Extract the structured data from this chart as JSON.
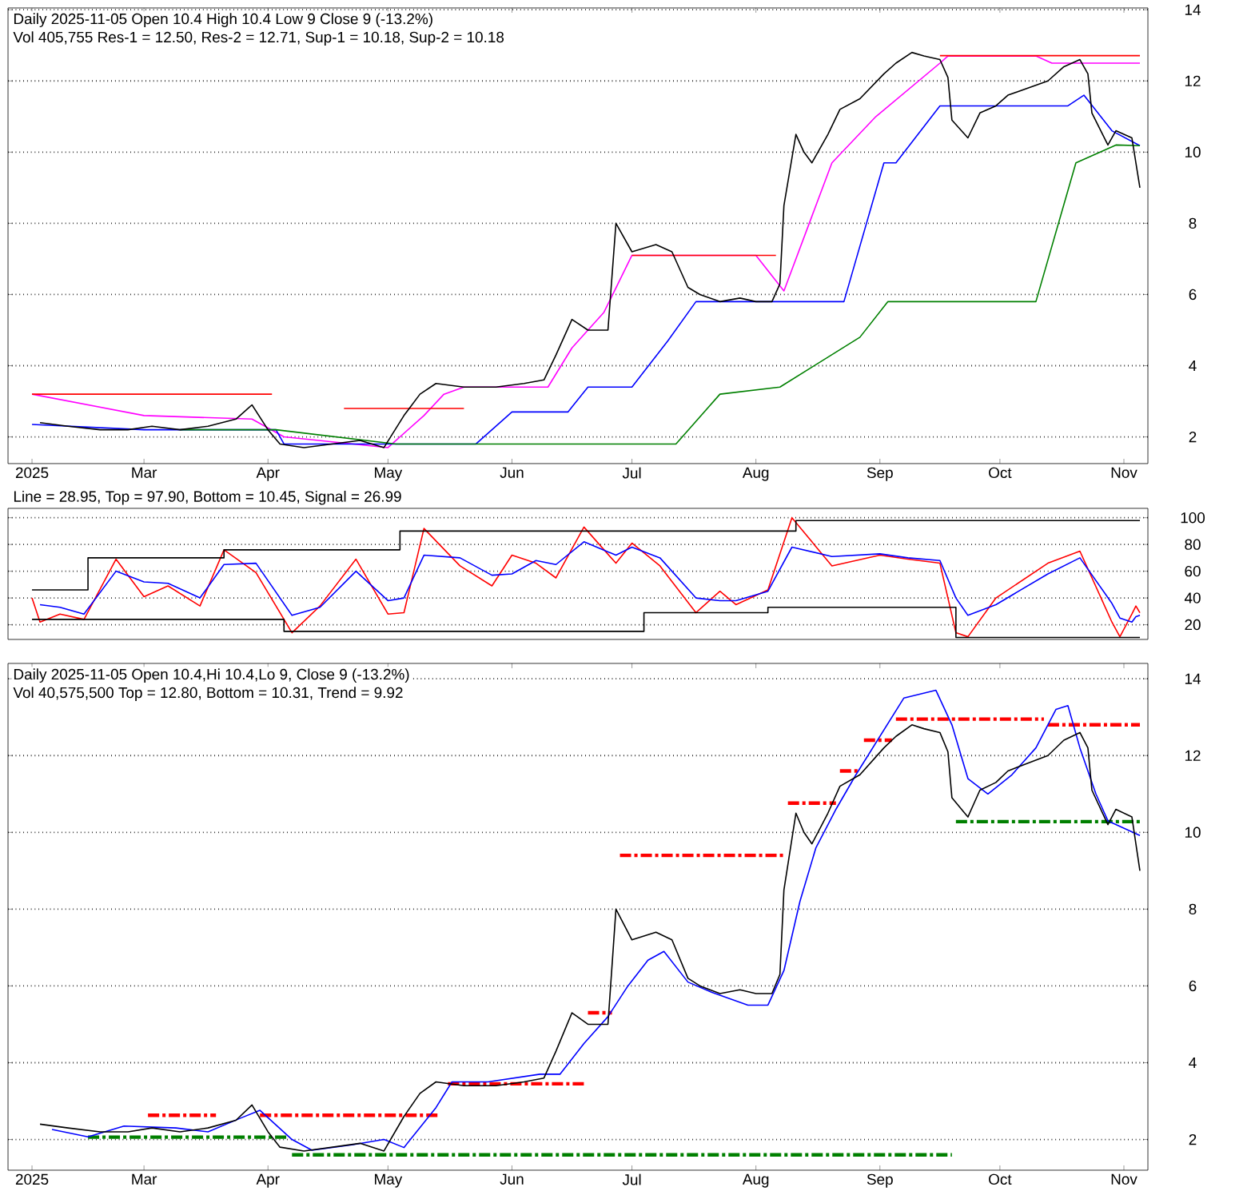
{
  "chart_data": [
    {
      "type": "line",
      "title": "Daily 2025-11-05 Open 10.4  High 10.4  Low 9  Close 9 (-13.2%)",
      "subtitle": "Vol 405,755 Res-1 = 12.50, Res-2 = 12.71, Sup-1 = 10.18, Sup-2 = 10.18",
      "xlim": [
        "2025-01-26",
        "2025-11-07"
      ],
      "ylim": [
        1.25,
        14.05
      ],
      "yticks": [
        2,
        4,
        6,
        8,
        10,
        12,
        14
      ],
      "xticks": [
        {
          "value": "2025-02-01",
          "label": "2025"
        },
        {
          "value": "2025-03-01",
          "label": "Mar"
        },
        {
          "value": "2025-04-01",
          "label": "Apr"
        },
        {
          "value": "2025-05-01",
          "label": "May"
        },
        {
          "value": "2025-06-01",
          "label": "Jun"
        },
        {
          "value": "2025-07-01",
          "label": "Jul"
        },
        {
          "value": "2025-08-01",
          "label": "Aug"
        },
        {
          "value": "2025-09-01",
          "label": "Sep"
        },
        {
          "value": "2025-10-01",
          "label": "Oct"
        },
        {
          "value": "2025-11-01",
          "label": "Nov"
        }
      ],
      "grid": "y",
      "line_style": "solid",
      "series": [
        {
          "color": "#ff00ff",
          "x": [
            "2025-02-01",
            "2025-03-01",
            "2025-03-28",
            "2025-04-05",
            "2025-05-01",
            "2025-05-10",
            "2025-05-15",
            "2025-05-20",
            "2025-06-10",
            "2025-06-16",
            "2025-06-24",
            "2025-07-01",
            "2025-08-01",
            "2025-08-08",
            "2025-08-20",
            "2025-08-31",
            "2025-09-16",
            "2025-09-18",
            "2025-10-10",
            "2025-10-14",
            "2025-11-05"
          ],
          "values": [
            3.2,
            2.6,
            2.5,
            2.0,
            1.7,
            2.6,
            3.2,
            3.4,
            3.4,
            4.5,
            5.5,
            7.1,
            7.1,
            6.1,
            9.7,
            11.0,
            12.5,
            12.7,
            12.7,
            12.5,
            12.5
          ]
        },
        {
          "color": "#ff0000",
          "x": [
            "2025-02-01",
            "2025-04-02",
            "2025-04-03",
            "2025-04-20",
            "2025-05-20",
            "2025-05-21",
            "2025-07-01",
            "2025-08-06",
            "2025-08-07",
            "2025-09-16",
            "2025-11-05"
          ],
          "values": [
            3.2,
            3.2,
            null,
            2.8,
            2.8,
            null,
            7.1,
            7.1,
            null,
            12.71,
            12.71
          ]
        },
        {
          "color": "#0000ff",
          "x": [
            "2025-02-01",
            "2025-03-01",
            "2025-04-03",
            "2025-04-05",
            "2025-05-23",
            "2025-06-01",
            "2025-06-15",
            "2025-06-20",
            "2025-07-01",
            "2025-07-10",
            "2025-07-17",
            "2025-08-23",
            "2025-09-02",
            "2025-09-05",
            "2025-09-16",
            "2025-10-18",
            "2025-10-22",
            "2025-10-29",
            "2025-11-05"
          ],
          "values": [
            2.35,
            2.2,
            2.2,
            1.8,
            1.8,
            2.7,
            2.7,
            3.4,
            3.4,
            4.7,
            5.8,
            5.8,
            9.7,
            9.7,
            11.3,
            11.3,
            11.6,
            10.6,
            10.18
          ]
        },
        {
          "color": "#008000",
          "x": [
            "2025-03-10",
            "2025-04-03",
            "2025-05-03",
            "2025-07-12",
            "2025-07-23",
            "2025-08-07",
            "2025-08-27",
            "2025-09-03",
            "2025-10-10",
            "2025-10-20",
            "2025-10-30",
            "2025-11-05"
          ],
          "values": [
            2.2,
            2.2,
            1.8,
            1.8,
            3.2,
            3.4,
            4.8,
            5.8,
            5.8,
            9.7,
            10.2,
            10.18
          ]
        },
        {
          "color": "#000000",
          "x": [
            "2025-02-03",
            "2025-02-10",
            "2025-02-18",
            "2025-02-25",
            "2025-03-03",
            "2025-03-10",
            "2025-03-17",
            "2025-03-24",
            "2025-03-28",
            "2025-04-01",
            "2025-04-04",
            "2025-04-10",
            "2025-04-17",
            "2025-04-24",
            "2025-04-30",
            "2025-05-05",
            "2025-05-09",
            "2025-05-13",
            "2025-05-20",
            "2025-05-28",
            "2025-06-04",
            "2025-06-09",
            "2025-06-12",
            "2025-06-16",
            "2025-06-20",
            "2025-06-25",
            "2025-06-27",
            "2025-07-01",
            "2025-07-07",
            "2025-07-11",
            "2025-07-15",
            "2025-07-18",
            "2025-07-23",
            "2025-07-28",
            "2025-08-01",
            "2025-08-05",
            "2025-08-07",
            "2025-08-08",
            "2025-08-11",
            "2025-08-13",
            "2025-08-15",
            "2025-08-19",
            "2025-08-22",
            "2025-08-27",
            "2025-09-02",
            "2025-09-05",
            "2025-09-09",
            "2025-09-12",
            "2025-09-16",
            "2025-09-18",
            "2025-09-19",
            "2025-09-23",
            "2025-09-26",
            "2025-09-30",
            "2025-10-03",
            "2025-10-08",
            "2025-10-13",
            "2025-10-17",
            "2025-10-21",
            "2025-10-23",
            "2025-10-24",
            "2025-10-28",
            "2025-10-30",
            "2025-11-03",
            "2025-11-05"
          ],
          "values": [
            2.4,
            2.3,
            2.2,
            2.2,
            2.3,
            2.2,
            2.3,
            2.5,
            2.9,
            2.2,
            1.8,
            1.7,
            1.8,
            1.9,
            1.7,
            2.6,
            3.2,
            3.5,
            3.4,
            3.4,
            3.5,
            3.6,
            4.3,
            5.3,
            5.0,
            5.0,
            8.0,
            7.2,
            7.4,
            7.2,
            6.2,
            6.0,
            5.8,
            5.9,
            5.8,
            5.8,
            6.3,
            8.5,
            10.5,
            10.0,
            9.7,
            10.5,
            11.2,
            11.5,
            12.2,
            12.5,
            12.8,
            12.7,
            12.6,
            12.1,
            10.9,
            10.4,
            11.1,
            11.3,
            11.6,
            11.8,
            12.0,
            12.4,
            12.6,
            12.2,
            11.1,
            10.2,
            10.6,
            10.4,
            9.0
          ]
        }
      ]
    },
    {
      "type": "line",
      "title": "Line = 28.95, Top = 97.90, Bottom = 10.45, Signal = 26.99",
      "xlim": [
        "2025-01-26",
        "2025-11-07"
      ],
      "ylim": [
        9,
        107
      ],
      "yticks": [
        20,
        40,
        60,
        80,
        100
      ],
      "grid": "y",
      "tick_labels": "y",
      "line_style": "solid",
      "x": [
        "2025-02-01",
        "2025-02-03",
        "2025-02-08",
        "2025-02-14",
        "2025-02-22",
        "2025-03-01",
        "2025-03-07",
        "2025-03-15",
        "2025-03-21",
        "2025-03-29",
        "2025-04-07",
        "2025-04-14",
        "2025-04-23",
        "2025-05-01",
        "2025-05-05",
        "2025-05-10",
        "2025-05-19",
        "2025-05-27",
        "2025-06-01",
        "2025-06-07",
        "2025-06-12",
        "2025-06-19",
        "2025-06-27",
        "2025-07-01",
        "2025-07-08",
        "2025-07-17",
        "2025-07-23",
        "2025-07-27",
        "2025-08-04",
        "2025-08-10",
        "2025-08-20",
        "2025-09-01",
        "2025-09-08",
        "2025-09-16",
        "2025-09-20",
        "2025-09-23",
        "2025-09-30",
        "2025-10-13",
        "2025-10-21",
        "2025-10-29",
        "2025-10-31",
        "2025-11-03",
        "2025-11-04",
        "2025-11-05"
      ],
      "series": [
        {
          "color": "#ff0000",
          "values": [
            40,
            22,
            28,
            24,
            69,
            41,
            49,
            34,
            76,
            59,
            14,
            34,
            69,
            28,
            29,
            92,
            64,
            49,
            72,
            66,
            55,
            93,
            66,
            81,
            64,
            29,
            45,
            35,
            46,
            100,
            64,
            72,
            69,
            66,
            14,
            11,
            40,
            66,
            75,
            22,
            11,
            28,
            34,
            28.95
          ]
        },
        {
          "color": "#0000ff",
          "values": [
            null,
            35,
            33,
            28,
            60,
            52,
            51,
            40,
            65,
            66,
            27,
            33,
            60,
            38,
            40,
            72,
            70,
            57,
            58,
            68,
            65,
            82,
            72,
            78,
            70,
            40,
            38,
            38,
            45,
            78,
            71,
            73,
            70,
            68,
            40,
            27,
            35,
            58,
            70,
            36,
            25,
            22,
            26,
            26.99
          ]
        },
        {
          "type": "step",
          "color": "#000000",
          "x": [
            "2025-02-01",
            "2025-02-15",
            "2025-03-21",
            "2025-05-04",
            "2025-08-11",
            "2025-11-05"
          ],
          "values": [
            46,
            70,
            76,
            90,
            97.9,
            97.9
          ]
        },
        {
          "type": "step",
          "color": "#000000",
          "x": [
            "2025-02-01",
            "2025-04-05",
            "2025-07-04",
            "2025-08-04",
            "2025-09-20",
            "2025-11-05"
          ],
          "values": [
            24,
            15,
            29,
            33,
            10.45,
            10.45
          ]
        }
      ]
    },
    {
      "type": "line",
      "title": "Daily 2025-11-05 Open 10.4,Hi 10.4,Lo 9, Close 9 (-13.2%)",
      "subtitle": "Vol 40,575,500 Top = 12.80, Bottom = 10.31, Trend = 9.92",
      "xlim": [
        "2025-01-26",
        "2025-11-07"
      ],
      "ylim": [
        1.2,
        14.4
      ],
      "yticks": [
        2,
        4,
        6,
        8,
        10,
        12,
        14
      ],
      "xticks": [
        {
          "value": "2025-02-01",
          "label": "2025"
        },
        {
          "value": "2025-03-01",
          "label": "Mar"
        },
        {
          "value": "2025-04-01",
          "label": "Apr"
        },
        {
          "value": "2025-05-01",
          "label": "May"
        },
        {
          "value": "2025-06-01",
          "label": "Jun"
        },
        {
          "value": "2025-07-01",
          "label": "Jul"
        },
        {
          "value": "2025-08-01",
          "label": "Aug"
        },
        {
          "value": "2025-09-01",
          "label": "Sep"
        },
        {
          "value": "2025-10-01",
          "label": "Oct"
        },
        {
          "value": "2025-11-01",
          "label": "Nov"
        }
      ],
      "grid": "y",
      "line_style": "solid",
      "series": [
        {
          "color": "#ff0000",
          "line_style": "dashed",
          "x": [
            "2025-03-02",
            "2025-03-19"
          ],
          "values": [
            2.63,
            2.63
          ]
        },
        {
          "color": "#ff0000",
          "line_style": "dashed",
          "x": [
            "2025-03-30",
            "2025-05-14"
          ],
          "values": [
            2.63,
            2.63
          ]
        },
        {
          "color": "#ff0000",
          "line_style": "dashed",
          "x": [
            "2025-05-16",
            "2025-06-19"
          ],
          "values": [
            3.45,
            3.45
          ]
        },
        {
          "color": "#ff0000",
          "line_style": "dashed",
          "x": [
            "2025-06-20",
            "2025-06-26"
          ],
          "values": [
            5.3,
            5.3
          ]
        },
        {
          "color": "#ff0000",
          "line_style": "dashed",
          "x": [
            "2025-06-28",
            "2025-08-08"
          ],
          "values": [
            9.4,
            9.4
          ]
        },
        {
          "color": "#ff0000",
          "line_style": "dashed",
          "x": [
            "2025-08-09",
            "2025-08-21"
          ],
          "values": [
            10.76,
            10.76
          ]
        },
        {
          "color": "#ff0000",
          "line_style": "dashed",
          "x": [
            "2025-08-22",
            "2025-08-27"
          ],
          "values": [
            11.6,
            11.6
          ]
        },
        {
          "color": "#ff0000",
          "line_style": "dashed",
          "x": [
            "2025-08-28",
            "2025-09-04"
          ],
          "values": [
            12.4,
            12.4
          ]
        },
        {
          "color": "#ff0000",
          "line_style": "dashed",
          "x": [
            "2025-09-05",
            "2025-10-12"
          ],
          "values": [
            12.95,
            12.95
          ]
        },
        {
          "color": "#ff0000",
          "line_style": "dashed",
          "x": [
            "2025-10-13",
            "2025-11-05"
          ],
          "values": [
            12.8,
            12.8
          ]
        },
        {
          "color": "#008000",
          "line_style": "dashed",
          "x": [
            "2025-02-15",
            "2025-04-06"
          ],
          "values": [
            2.06,
            2.06
          ]
        },
        {
          "color": "#008000",
          "line_style": "dashed",
          "x": [
            "2025-04-07",
            "2025-09-19"
          ],
          "values": [
            1.6,
            1.6
          ]
        },
        {
          "color": "#008000",
          "line_style": "dashed",
          "x": [
            "2025-09-20",
            "2025-11-05"
          ],
          "values": [
            10.28,
            10.28
          ]
        },
        {
          "color": "#0000ff",
          "x": [
            "2025-02-06",
            "2025-02-15",
            "2025-02-24",
            "2025-03-09",
            "2025-03-17",
            "2025-03-25",
            "2025-03-30",
            "2025-04-07",
            "2025-04-12",
            "2025-04-22",
            "2025-04-30",
            "2025-05-05",
            "2025-05-13",
            "2025-05-17",
            "2025-05-26",
            "2025-06-08",
            "2025-06-13",
            "2025-06-19",
            "2025-06-25",
            "2025-06-30",
            "2025-07-05",
            "2025-07-09",
            "2025-07-15",
            "2025-07-21",
            "2025-07-30",
            "2025-08-04",
            "2025-08-08",
            "2025-08-12",
            "2025-08-16",
            "2025-08-21",
            "2025-08-26",
            "2025-09-01",
            "2025-09-07",
            "2025-09-15",
            "2025-09-19",
            "2025-09-23",
            "2025-09-28",
            "2025-10-04",
            "2025-10-10",
            "2025-10-15",
            "2025-10-18",
            "2025-10-21",
            "2025-10-25",
            "2025-10-28",
            "2025-11-05"
          ],
          "values": [
            2.26,
            2.07,
            2.35,
            2.3,
            2.2,
            2.55,
            2.76,
            2.0,
            1.72,
            1.86,
            2.0,
            1.79,
            2.83,
            3.5,
            3.5,
            3.7,
            3.7,
            4.5,
            5.2,
            6.0,
            6.67,
            6.9,
            6.1,
            5.83,
            5.5,
            5.5,
            6.4,
            8.2,
            9.6,
            10.6,
            11.5,
            12.5,
            13.5,
            13.7,
            12.8,
            11.4,
            11.0,
            11.5,
            12.2,
            13.2,
            13.3,
            12.2,
            11.0,
            10.3,
            9.92
          ]
        },
        {
          "color": "#000000",
          "x": [
            "2025-02-03",
            "2025-02-10",
            "2025-02-18",
            "2025-02-25",
            "2025-03-03",
            "2025-03-10",
            "2025-03-17",
            "2025-03-24",
            "2025-03-28",
            "2025-04-01",
            "2025-04-04",
            "2025-04-10",
            "2025-04-17",
            "2025-04-24",
            "2025-04-30",
            "2025-05-05",
            "2025-05-09",
            "2025-05-13",
            "2025-05-20",
            "2025-05-28",
            "2025-06-04",
            "2025-06-09",
            "2025-06-12",
            "2025-06-16",
            "2025-06-20",
            "2025-06-25",
            "2025-06-27",
            "2025-07-01",
            "2025-07-07",
            "2025-07-11",
            "2025-07-15",
            "2025-07-18",
            "2025-07-23",
            "2025-07-28",
            "2025-08-01",
            "2025-08-05",
            "2025-08-07",
            "2025-08-08",
            "2025-08-11",
            "2025-08-13",
            "2025-08-15",
            "2025-08-19",
            "2025-08-22",
            "2025-08-27",
            "2025-09-02",
            "2025-09-05",
            "2025-09-09",
            "2025-09-12",
            "2025-09-16",
            "2025-09-18",
            "2025-09-19",
            "2025-09-23",
            "2025-09-26",
            "2025-09-30",
            "2025-10-03",
            "2025-10-08",
            "2025-10-13",
            "2025-10-17",
            "2025-10-21",
            "2025-10-23",
            "2025-10-24",
            "2025-10-28",
            "2025-10-30",
            "2025-11-03",
            "2025-11-05"
          ],
          "values": [
            2.4,
            2.3,
            2.2,
            2.2,
            2.3,
            2.2,
            2.3,
            2.5,
            2.9,
            2.2,
            1.8,
            1.7,
            1.8,
            1.9,
            1.7,
            2.6,
            3.2,
            3.5,
            3.4,
            3.4,
            3.5,
            3.6,
            4.3,
            5.3,
            5.0,
            5.0,
            8.0,
            7.2,
            7.4,
            7.2,
            6.2,
            6.0,
            5.8,
            5.9,
            5.8,
            5.8,
            6.3,
            8.5,
            10.5,
            10.0,
            9.7,
            10.5,
            11.2,
            11.5,
            12.2,
            12.5,
            12.8,
            12.7,
            12.6,
            12.1,
            10.9,
            10.4,
            11.1,
            11.3,
            11.6,
            11.8,
            12.0,
            12.4,
            12.6,
            12.2,
            11.1,
            10.2,
            10.6,
            10.4,
            9.0
          ]
        }
      ]
    }
  ]
}
